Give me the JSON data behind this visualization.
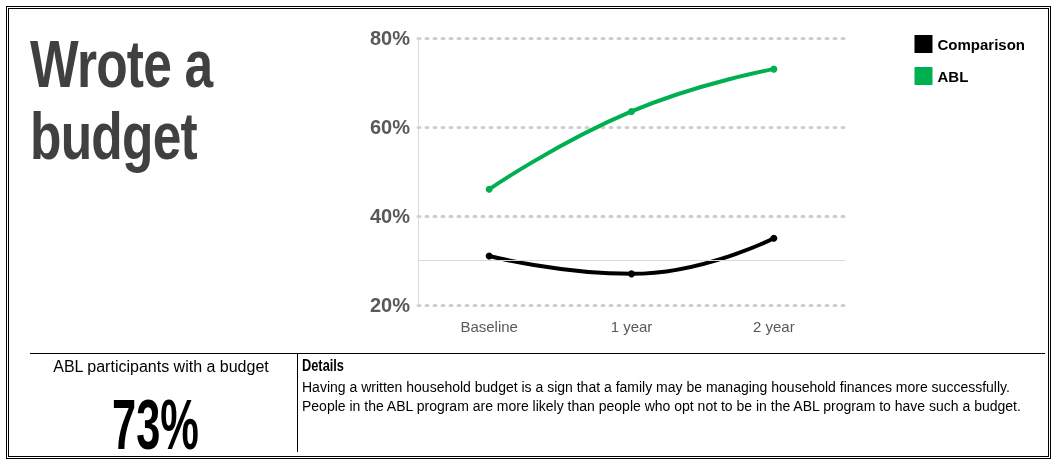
{
  "chart_data": {
    "type": "line",
    "title": "Wrote a budget",
    "categories": [
      "Baseline",
      "1 year",
      "2 year"
    ],
    "series": [
      {
        "name": "Comparison",
        "color": "#000000",
        "values": [
          31,
          27,
          35
        ]
      },
      {
        "name": "ABL",
        "color": "#00b050",
        "values": [
          46,
          63.5,
          73
        ]
      }
    ],
    "ylim": [
      20,
      80
    ],
    "yticks": [
      {
        "value": 20,
        "label": "20%"
      },
      {
        "value": 40,
        "label": "40%"
      },
      {
        "value": 60,
        "label": "60%"
      },
      {
        "value": 80,
        "label": "80%"
      }
    ],
    "ref_lines": [
      {
        "axis": "y",
        "value": 30,
        "label": null,
        "color": "#d9d9d9"
      }
    ],
    "grid": "y",
    "legend": "top right",
    "marker": "circle",
    "line_style": "solid",
    "annotations": [
      "ABL participants with a budget",
      "73%",
      "Details",
      "Having a written household budget is a sign that a family may be managing household finances more successfully.  People in the ABL program are more likely than people who opt not to be in the ABL program to have such a budget."
    ]
  }
}
